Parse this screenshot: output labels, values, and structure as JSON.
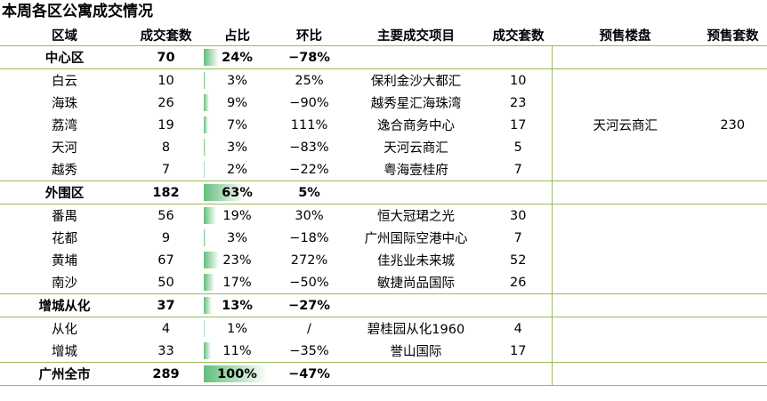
{
  "title": "本周各区公寓成交情况",
  "table": {
    "header": [
      "区域",
      "成交套数",
      "占比",
      "环比",
      "主要成交项目",
      "成交套数",
      "预售楼盘",
      "预售套数"
    ],
    "groups": [
      {
        "summary": [
          "中心区",
          "70",
          "24%",
          "−78%"
        ],
        "rows": [
          [
            "白云",
            "10",
            "3%",
            "25%",
            "保利金沙大都汇",
            "10"
          ],
          [
            "海珠",
            "26",
            "9%",
            "−90%",
            "越秀星汇海珠湾",
            "23"
          ],
          [
            "荔湾",
            "19",
            "7%",
            "111%",
            "逸合商务中心",
            "17"
          ],
          [
            "天河",
            "8",
            "3%",
            "−83%",
            "天河云商汇",
            "5"
          ],
          [
            "越秀",
            "7",
            "2%",
            "−22%",
            "粤海壹桂府",
            "7"
          ]
        ],
        "presale": [
          "天河云商汇",
          "230"
        ]
      },
      {
        "summary": [
          "外围区",
          "182",
          "63%",
          "5%"
        ],
        "rows": [
          [
            "番禺",
            "56",
            "19%",
            "30%",
            "恒大冠珺之光",
            "30"
          ],
          [
            "花都",
            "9",
            "3%",
            "−18%",
            "广州国际空港中心",
            "7"
          ],
          [
            "黄埔",
            "67",
            "23%",
            "272%",
            "佳兆业未来城",
            "52"
          ],
          [
            "南沙",
            "50",
            "17%",
            "−50%",
            "敏捷尚品国际",
            "26"
          ]
        ]
      },
      {
        "summary": [
          "增城从化",
          "37",
          "13%",
          "−27%"
        ],
        "rows": [
          [
            "从化",
            "4",
            "1%",
            "/",
            "碧桂园从化1960",
            "4"
          ],
          [
            "增城",
            "33",
            "11%",
            "−35%",
            "誉山国际",
            "17"
          ]
        ]
      },
      {
        "summary": [
          "广州全市",
          "289",
          "100%",
          "−47%"
        ],
        "rows": []
      }
    ]
  }
}
